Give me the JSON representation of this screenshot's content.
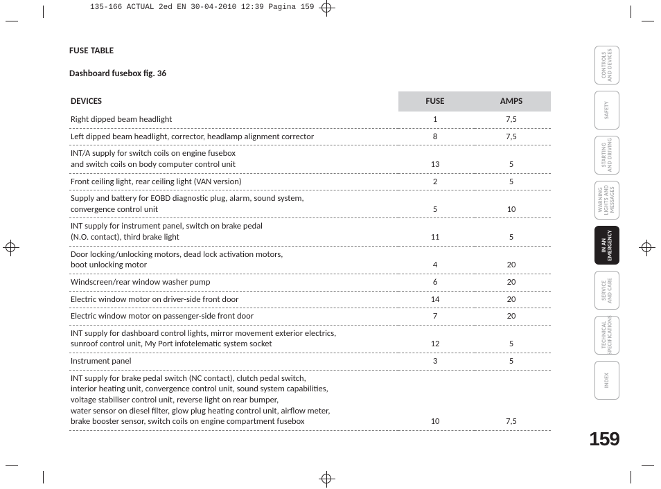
{
  "print_header": "135-166 ACTUAL 2ed EN  30-04-2010  12:39  Pagina 159",
  "title": "FUSE TABLE",
  "subtitle": "Dashboard fusebox fig. 36",
  "columns": {
    "devices": "DEVICES",
    "fuse": "FUSE",
    "amps": "AMPS"
  },
  "rows": [
    {
      "device": "Right dipped beam headlight",
      "fuse": "1",
      "amps": "7,5"
    },
    {
      "device": "Left dipped beam headlight, corrector, headlamp alignment corrector",
      "fuse": "8",
      "amps": "7,5"
    },
    {
      "device": "INT/A supply for switch coils on engine fusebox\nand switch coils on body computer control unit",
      "fuse": "13",
      "amps": "5"
    },
    {
      "device": "Front ceiling light, rear ceiling light (VAN version)",
      "fuse": "2",
      "amps": "5"
    },
    {
      "device": "Supply and battery for EOBD diagnostic plug, alarm, sound system,\nconvergence control unit",
      "fuse": "5",
      "amps": "10"
    },
    {
      "device": "INT supply for instrument panel, switch on brake pedal\n(N.O. contact), third brake light",
      "fuse": "11",
      "amps": "5"
    },
    {
      "device": "Door locking/unlocking motors, dead lock activation motors,\nboot unlocking motor",
      "fuse": "4",
      "amps": "20"
    },
    {
      "device": "Windscreen/rear window washer pump",
      "fuse": "6",
      "amps": "20"
    },
    {
      "device": "Electric window motor on driver-side front door",
      "fuse": "14",
      "amps": "20"
    },
    {
      "device": "Electric window motor on passenger-side front door",
      "fuse": "7",
      "amps": "20"
    },
    {
      "device": "INT supply for dashboard control lights, mirror movement exterior electrics,\nsunroof control unit, My Port infotelematic system socket",
      "fuse": "12",
      "amps": "5"
    },
    {
      "device": "Instrument panel",
      "fuse": "3",
      "amps": "5"
    },
    {
      "device": "INT supply for brake pedal switch (NC contact), clutch pedal switch,\ninterior heating unit, convergence control unit, sound system capabilities,\nvoltage stabiliser control unit, reverse light on rear bumper,\nwater sensor on diesel filter, glow plug heating control unit, airflow meter,\nbrake booster sensor, switch coils on engine compartment fusebox",
      "fuse": "10",
      "amps": "7,5"
    }
  ],
  "tabs": [
    {
      "label": "CONTROLS\nAND DEVICES",
      "active": false
    },
    {
      "label": "SAFETY",
      "active": false
    },
    {
      "label": "STARTING\nAND DRIVING",
      "active": false
    },
    {
      "label": "WARNING\nLIGHTS AND\nMESSAGES",
      "active": false
    },
    {
      "label": "IN AN\nEMERGENCY",
      "active": true
    },
    {
      "label": "SERVICE\nAND CARE",
      "active": false
    },
    {
      "label": "TECHNICAL\nSPECIFICATIONS",
      "active": false
    },
    {
      "label": "INDEX",
      "active": false
    }
  ],
  "page_number": "159"
}
